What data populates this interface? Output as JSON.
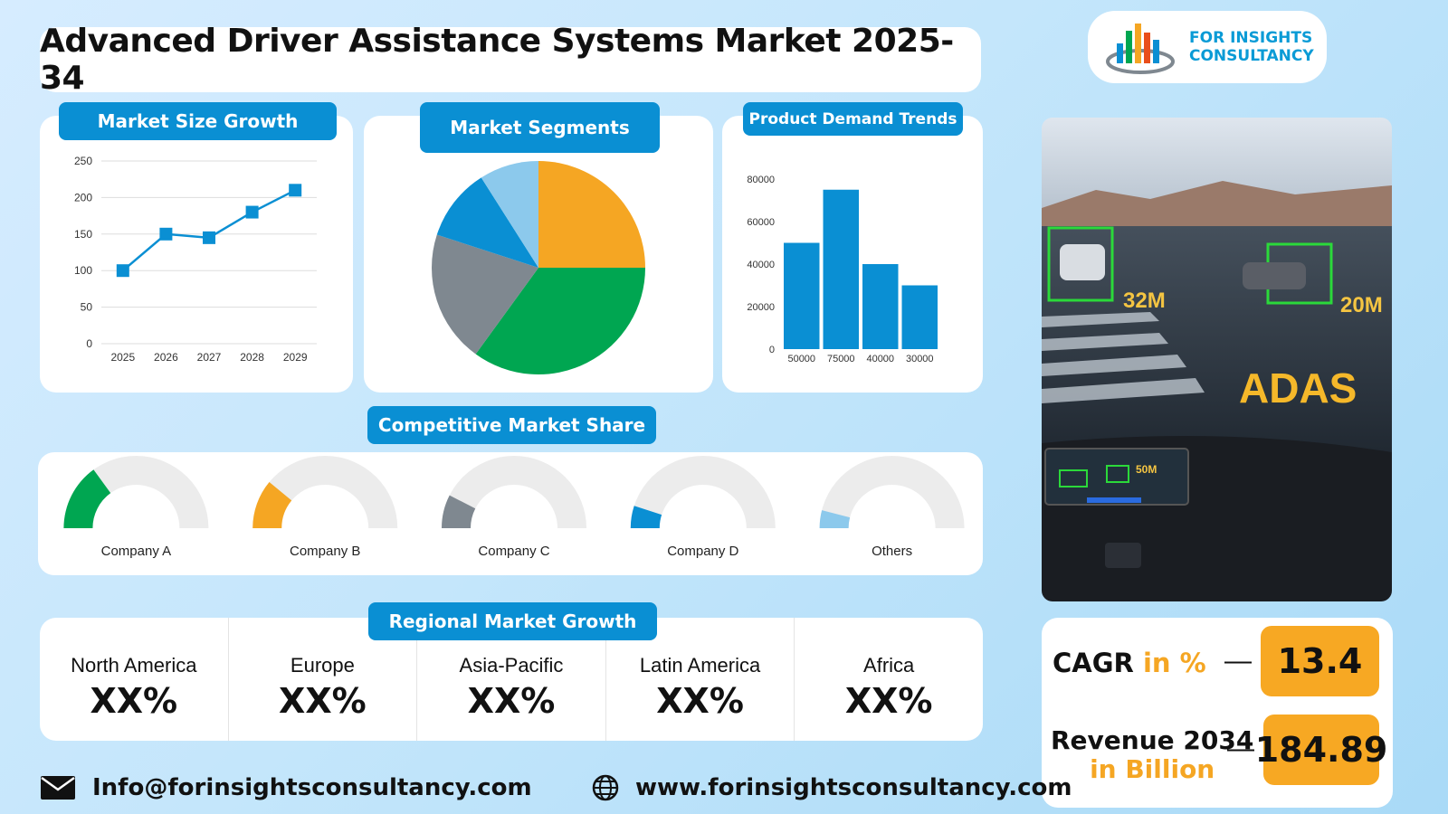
{
  "title": "Advanced Driver Assistance Systems Market 2025-34",
  "logo": {
    "line1": "FOR INSIGHTS",
    "line2": "CONSULTANCY"
  },
  "sections": {
    "market_size": "Market Size Growth",
    "segments": "Market Segments",
    "demand": "Product Demand Trends",
    "competitive": "Competitive Market Share",
    "regional": "Regional Market Growth"
  },
  "chart_data": [
    {
      "type": "line",
      "title": "Market Size Growth",
      "categories": [
        "2025",
        "2026",
        "2027",
        "2028",
        "2029"
      ],
      "values": [
        100,
        150,
        145,
        180,
        210
      ],
      "yticks": [
        "0",
        "50",
        "100",
        "150",
        "200",
        "250"
      ],
      "ylim": [
        0,
        250
      ],
      "color": "#0a8fd3"
    },
    {
      "type": "pie",
      "title": "Market Segments",
      "slices": [
        {
          "value": 25,
          "color": "#f5a623"
        },
        {
          "value": 35,
          "color": "#00a651"
        },
        {
          "value": 20,
          "color": "#7f8890"
        },
        {
          "value": 11,
          "color": "#0a8fd3"
        },
        {
          "value": 9,
          "color": "#8cc9ec"
        }
      ]
    },
    {
      "type": "bar",
      "title": "Product Demand Trends",
      "categories": [
        "50000",
        "75000",
        "40000",
        "30000"
      ],
      "values": [
        50000,
        75000,
        40000,
        30000
      ],
      "yticks": [
        "0",
        "20000",
        "40000",
        "60000",
        "80000"
      ],
      "ylim": [
        0,
        80000
      ],
      "color": "#0a8fd3"
    },
    {
      "type": "gauge",
      "title": "Competitive Market Share",
      "items": [
        {
          "name": "Company A",
          "value": 0.3,
          "color": "#00a651"
        },
        {
          "name": "Company B",
          "value": 0.22,
          "color": "#f5a623"
        },
        {
          "name": "Company C",
          "value": 0.15,
          "color": "#7f8890"
        },
        {
          "name": "Company D",
          "value": 0.1,
          "color": "#0a8fd3"
        },
        {
          "name": "Others",
          "value": 0.08,
          "color": "#8cc9ec"
        }
      ]
    }
  ],
  "regions": [
    {
      "name": "North America",
      "value": "XX%"
    },
    {
      "name": "Europe",
      "value": "XX%"
    },
    {
      "name": "Asia-Pacific",
      "value": "XX%"
    },
    {
      "name": "Latin America",
      "value": "XX%"
    },
    {
      "name": "Africa",
      "value": "XX%"
    }
  ],
  "photo": {
    "labels": [
      "32M",
      "20M",
      "ADAS",
      "50M"
    ]
  },
  "kpi": {
    "cagr_label": "CAGR",
    "cagr_unit": "in %",
    "cagr_value": "13.4",
    "revenue_label": "Revenue 2034",
    "revenue_unit": "in Billion",
    "revenue_value": "184.89",
    "dash": "—"
  },
  "footer": {
    "email": "Info@forinsightsconsultancy.com",
    "website": "www.forinsightsconsultancy.com"
  },
  "colors": {
    "accent": "#0a8fd3",
    "orange": "#f5a623",
    "green": "#00a651"
  }
}
